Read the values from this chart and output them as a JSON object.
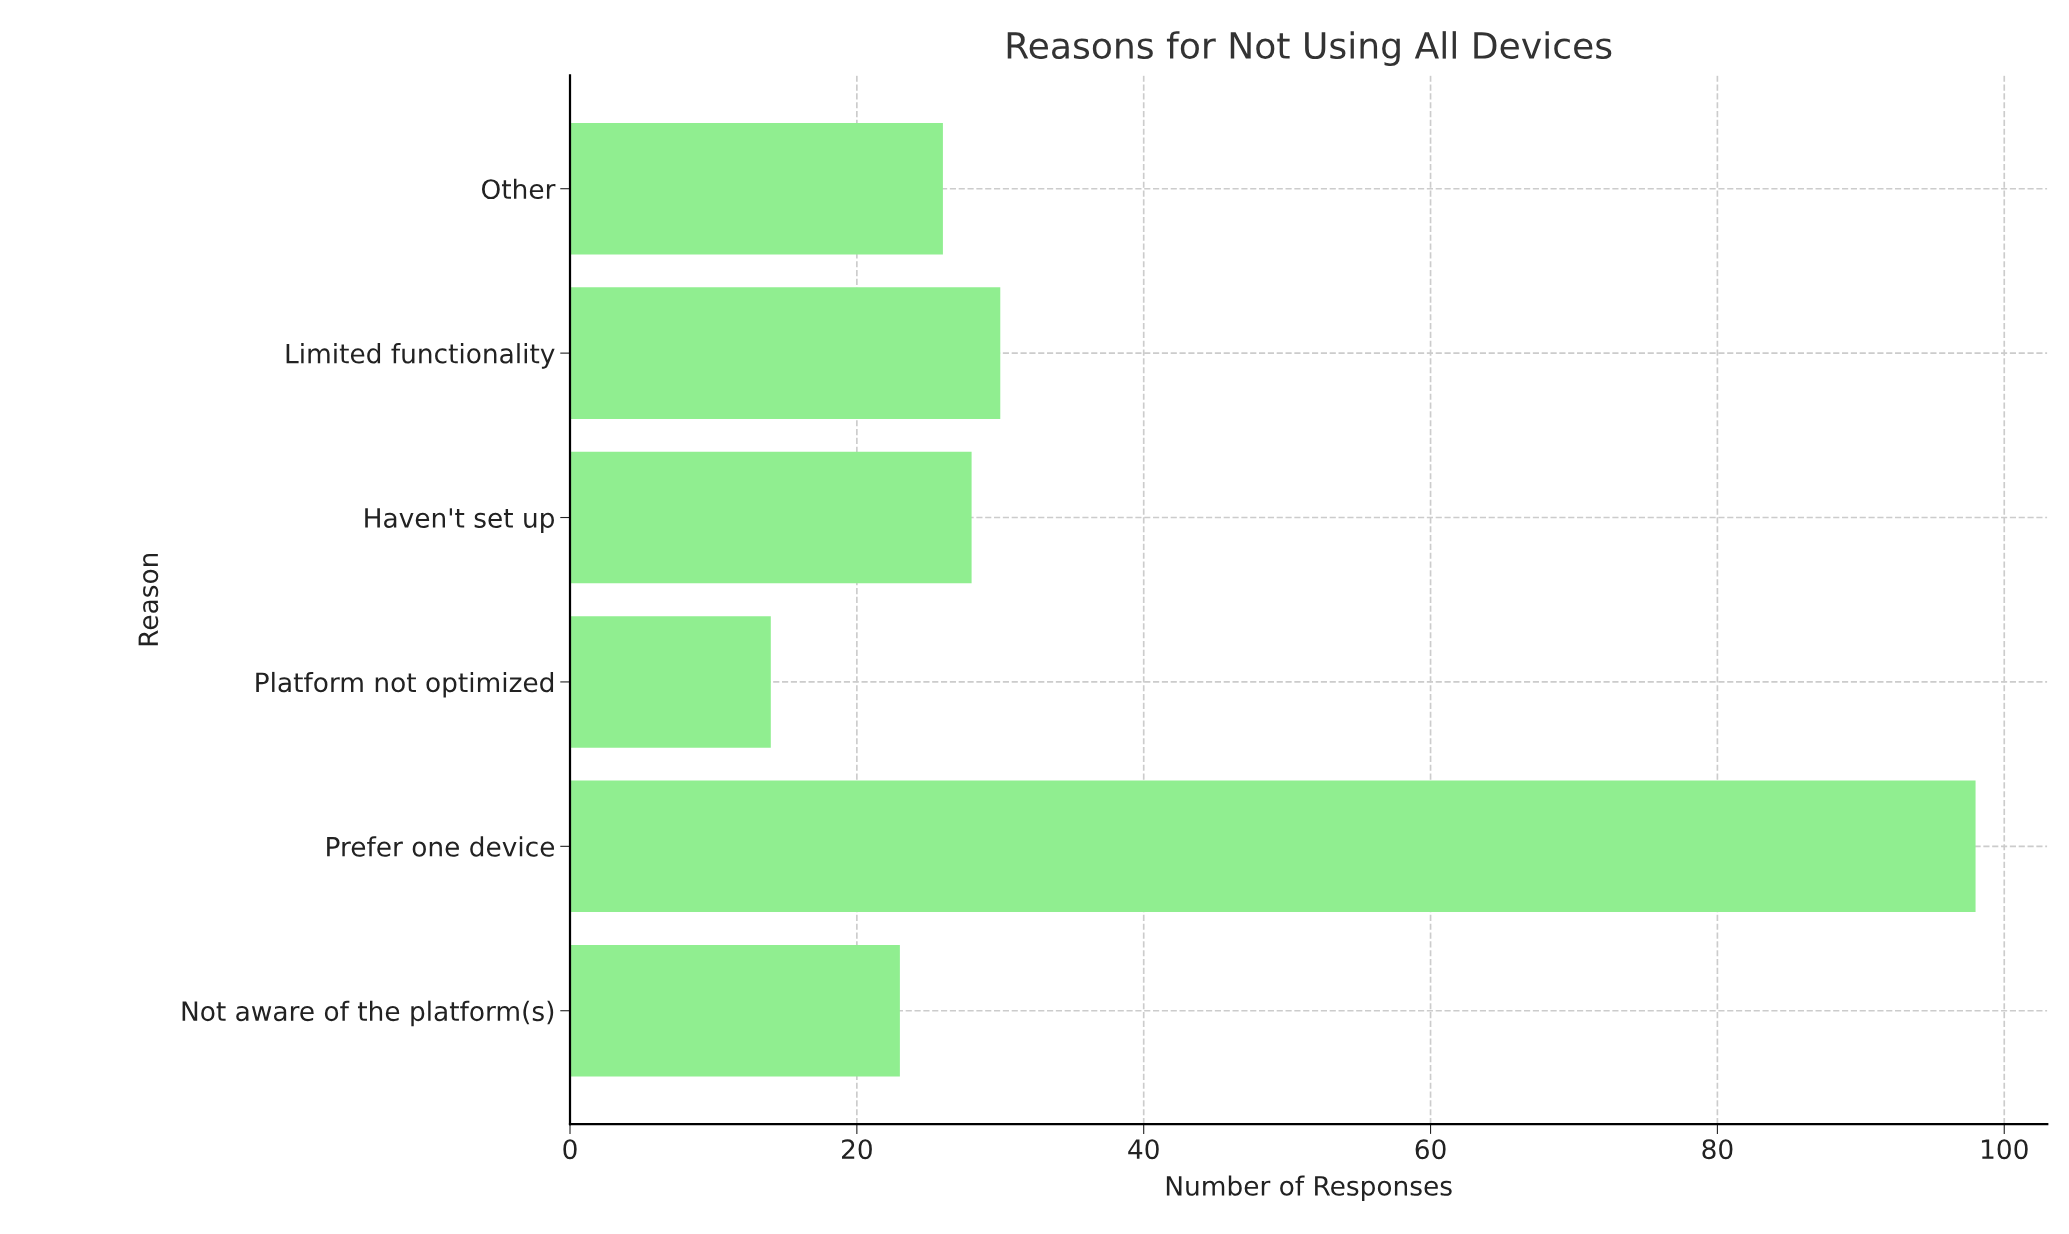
{
  "chart_data": {
    "type": "bar",
    "orientation": "horizontal",
    "title": "Reasons for Not Using All Devices",
    "xlabel": "Number of Responses",
    "ylabel": "Reason",
    "categories": [
      "Other",
      "Limited functionality",
      "Haven't set up",
      "Platform not optimized",
      "Prefer one device",
      "Not aware of the platform(s)"
    ],
    "values": [
      26,
      30,
      28,
      14,
      98,
      23
    ],
    "color": "#90ee90",
    "xlim": [
      0,
      103
    ],
    "xticks": [
      0,
      20,
      40,
      60,
      80,
      100
    ],
    "grid": true,
    "legend": false
  }
}
